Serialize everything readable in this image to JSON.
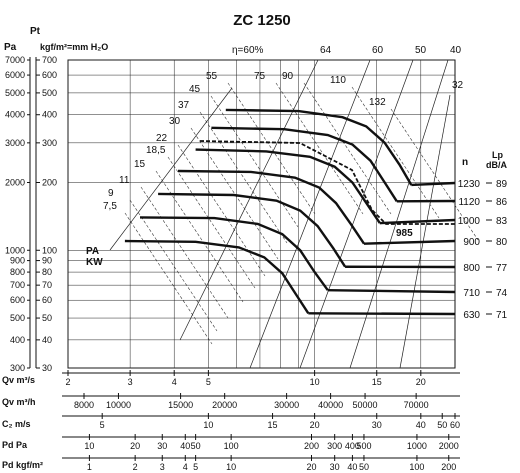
{
  "chart_data": {
    "type": "line",
    "title": "ZC 1250",
    "pressure_axis": {
      "label": "Pt",
      "pa_unit": "Pa",
      "kgf_unit": "kgf/m²=mm H₂O",
      "pa_ticks": [
        "7000",
        "6000",
        "5000",
        "4000",
        "3000",
        "2000",
        "1000",
        "900",
        "800",
        "700",
        "600",
        "500",
        "400",
        "300"
      ],
      "kgf_ticks": [
        "700",
        "600",
        "500",
        "400",
        "300",
        "200",
        "100",
        "90",
        "80",
        "70",
        "60",
        "50",
        "40",
        "30"
      ],
      "scale": "log"
    },
    "flow_axes": [
      {
        "label": "Qv m³/s",
        "ticks": [
          "2",
          "3",
          "4",
          "5",
          "10",
          "15",
          "20"
        ]
      },
      {
        "label": "Qv m³/h",
        "ticks": [
          "8000",
          "10000",
          "15000",
          "20000",
          "30000",
          "40000",
          "50000",
          "70000"
        ]
      },
      {
        "label": "C₂ m/s",
        "ticks": [
          "5",
          "10",
          "15",
          "20",
          "30",
          "40",
          "50",
          "60"
        ]
      },
      {
        "label": "Pd Pa",
        "ticks": [
          "10",
          "20",
          "30",
          "40",
          "50",
          "100",
          "200",
          "300",
          "400",
          "500",
          "1000",
          "2000"
        ]
      },
      {
        "label": "Pd kgf/m²",
        "ticks": [
          "1",
          "2",
          "3",
          "4",
          "5",
          "10",
          "20",
          "30",
          "40",
          "50",
          "100",
          "200"
        ]
      }
    ],
    "efficiency_label": "η=60%",
    "efficiency_lines": [
      "64",
      "60",
      "50",
      "40",
      "32"
    ],
    "power_label": "PA\nKW",
    "power_lines": [
      "7,5",
      "9",
      "11",
      "15",
      "18,5",
      "22",
      "30",
      "37",
      "45",
      "55",
      "75",
      "90",
      "110",
      "132"
    ],
    "speed_label": "n",
    "sound_label": "Lp\ndB/A",
    "series": [
      {
        "name": "1230",
        "lp": "89",
        "x": [
          5.6,
          9,
          12,
          14,
          15.8,
          17.4,
          18.8
        ],
        "y": [
          4200,
          4150,
          3900,
          3550,
          3000,
          2400,
          1950
        ]
      },
      {
        "name": "1120",
        "lp": "86",
        "x": [
          5.1,
          8.2,
          10.9,
          12.8,
          14.4,
          15.8,
          17.1
        ],
        "y": [
          3500,
          3450,
          3250,
          2950,
          2500,
          2000,
          1650
        ]
      },
      {
        "name": "1000",
        "lp": "83",
        "x": [
          4.6,
          7.3,
          9.7,
          11.4,
          12.8,
          14.1,
          15.3
        ],
        "y": [
          2800,
          2750,
          2600,
          2350,
          2000,
          1600,
          1320
        ]
      },
      {
        "name": "900",
        "lp": "80",
        "x": [
          4.1,
          6.6,
          8.8,
          10.3,
          11.5,
          12.7,
          13.8
        ],
        "y": [
          2250,
          2230,
          2100,
          1900,
          1620,
          1300,
          1070
        ]
      },
      {
        "name": "800",
        "lp": "77",
        "x": [
          3.6,
          5.9,
          7.8,
          9.1,
          10.2,
          11.3,
          12.2
        ],
        "y": [
          1780,
          1760,
          1660,
          1500,
          1280,
          1020,
          845
        ]
      },
      {
        "name": "710",
        "lp": "74",
        "x": [
          3.2,
          5.2,
          6.9,
          8.1,
          9.1,
          10,
          10.9
        ],
        "y": [
          1400,
          1390,
          1310,
          1180,
          1000,
          800,
          665
        ]
      },
      {
        "name": "630",
        "lp": "71",
        "x": [
          2.9,
          4.6,
          6.1,
          7.2,
          8.1,
          8.9,
          9.6
        ],
        "y": [
          1100,
          1090,
          1030,
          930,
          790,
          630,
          525
        ]
      }
    ],
    "extra_curve_label": "985",
    "grid": true
  }
}
